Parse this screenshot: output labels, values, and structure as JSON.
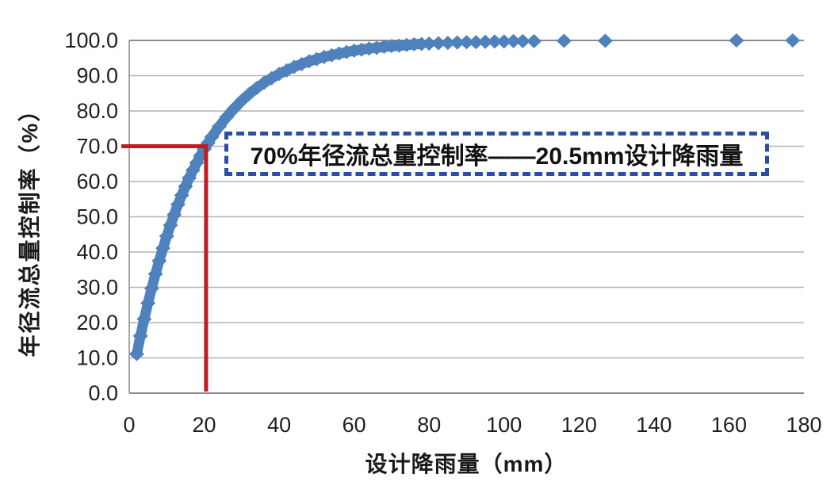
{
  "chart_data": {
    "type": "scatter",
    "title": "",
    "xlabel": "设计降雨量（mm）",
    "ylabel": "年径流总量控制率（%）",
    "xlim": [
      0,
      180
    ],
    "ylim": [
      0,
      100
    ],
    "x_ticks": [
      0,
      20,
      40,
      60,
      80,
      100,
      120,
      140,
      160,
      180
    ],
    "y_tick_labels": [
      "0.0",
      "10.0",
      "20.0",
      "30.0",
      "40.0",
      "50.0",
      "60.0",
      "70.0",
      "80.0",
      "90.0",
      "100.0"
    ],
    "grid": "horizontal-only",
    "legend": "none",
    "colors": {
      "marker": "#4f81bd",
      "gridline": "#b3b3b3",
      "axis": "#8c8c8c",
      "tick_text": "#1f1f1f",
      "reference_line": "#c01c22",
      "annotation_border": "#2b4da8",
      "annotation_background": "#ffffff"
    },
    "series": [
      {
        "name": "年径流总量控制率",
        "marker": "diamond",
        "color": "#4f81bd",
        "dense_band_points": [
          [
            2,
            11.1
          ],
          [
            3,
            16.2
          ],
          [
            4,
            21.0
          ],
          [
            5,
            25.5
          ],
          [
            6,
            29.7
          ],
          [
            7,
            33.8
          ],
          [
            8,
            37.5
          ],
          [
            9,
            41.1
          ],
          [
            10,
            44.5
          ],
          [
            11,
            47.6
          ],
          [
            12,
            50.6
          ],
          [
            13,
            53.5
          ],
          [
            14,
            56.1
          ],
          [
            15,
            58.6
          ],
          [
            16,
            61.0
          ],
          [
            17,
            63.2
          ],
          [
            18,
            65.3
          ],
          [
            19,
            67.3
          ],
          [
            20,
            69.2
          ],
          [
            21,
            70.9
          ],
          [
            22,
            72.6
          ],
          [
            24,
            75.6
          ],
          [
            26,
            78.3
          ],
          [
            28,
            80.7
          ],
          [
            30,
            82.9
          ],
          [
            32,
            84.8
          ],
          [
            34,
            86.5
          ],
          [
            36,
            88.0
          ],
          [
            38,
            89.3
          ],
          [
            40,
            90.5
          ],
          [
            42,
            91.5
          ],
          [
            44,
            92.5
          ],
          [
            46,
            93.3
          ],
          [
            48,
            94.1
          ],
          [
            50,
            94.7
          ],
          [
            52,
            95.3
          ],
          [
            54,
            95.8
          ],
          [
            56,
            96.3
          ],
          [
            58,
            96.7
          ],
          [
            60,
            97.1
          ],
          [
            62,
            97.4
          ],
          [
            64,
            97.7
          ],
          [
            66,
            97.9
          ],
          [
            68,
            98.2
          ],
          [
            70,
            98.4
          ],
          [
            72,
            98.5
          ],
          [
            74,
            98.7
          ],
          [
            76,
            98.9
          ],
          [
            78,
            99.0
          ]
        ],
        "sparse_points": [
          [
            80,
            99.1
          ],
          [
            82.5,
            99.2
          ],
          [
            85,
            99.3
          ],
          [
            87.5,
            99.4
          ],
          [
            90,
            99.5
          ],
          [
            92.5,
            99.5
          ],
          [
            95,
            99.6
          ],
          [
            97.5,
            99.7
          ],
          [
            100,
            99.7
          ],
          [
            102.5,
            99.8
          ],
          [
            105,
            99.8
          ],
          [
            108,
            99.8
          ],
          [
            116,
            99.9
          ],
          [
            127,
            99.9
          ],
          [
            162,
            100.0
          ],
          [
            177,
            100.0
          ]
        ]
      }
    ],
    "reference": {
      "x_value": 20.5,
      "y_value": 70
    },
    "annotation": {
      "text": "70%年径流总量控制率——20.5mm设计降雨量"
    }
  }
}
